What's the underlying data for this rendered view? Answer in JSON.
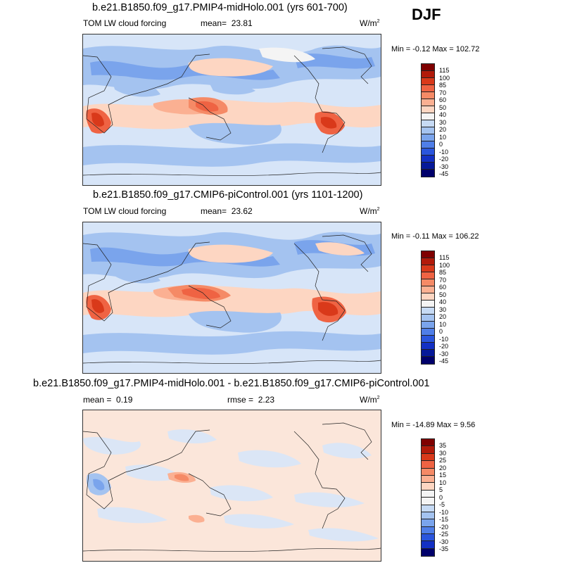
{
  "season": "DJF",
  "panels": [
    {
      "title": "b.e21.B1850.f09_g17.PMIP4-midHolo.001 (yrs 601-700)",
      "variable": "TOM LW cloud forcing",
      "mean_label": "mean=",
      "mean": "23.81",
      "units": "W/m",
      "units_sup": "2",
      "minmax": "Min =  -0.12 Max = 102.72",
      "levels": [
        "115",
        "100",
        "85",
        "70",
        "60",
        "50",
        "40",
        "30",
        "20",
        "10",
        "0",
        "-10",
        "-20",
        "-30",
        "-45"
      ]
    },
    {
      "title": "b.e21.B1850.f09_g17.CMIP6-piControl.001 (yrs 1101-1200)",
      "variable": "TOM LW cloud forcing",
      "mean_label": "mean=",
      "mean": "23.62",
      "units": "W/m",
      "units_sup": "2",
      "minmax": "Min =  -0.11 Max = 106.22",
      "levels": [
        "115",
        "100",
        "85",
        "70",
        "60",
        "50",
        "40",
        "30",
        "20",
        "10",
        "0",
        "-10",
        "-20",
        "-30",
        "-45"
      ]
    },
    {
      "title": "b.e21.B1850.f09_g17.PMIP4-midHolo.001 - b.e21.B1850.f09_g17.CMIP6-piControl.001",
      "mean_label": "mean =",
      "mean": "0.19",
      "rmse_label": "rmse =",
      "rmse": "2.23",
      "units": "W/m",
      "units_sup": "2",
      "minmax": "Min = -14.89 Max =   9.56",
      "levels": [
        "35",
        "30",
        "25",
        "20",
        "15",
        "10",
        "5",
        "0",
        "-5",
        "-10",
        "-15",
        "-20",
        "-25",
        "-30",
        "-35"
      ]
    }
  ],
  "colors": {
    "abs_scale": [
      "#7f0000",
      "#b21a0a",
      "#d9391a",
      "#ef6343",
      "#f58a66",
      "#fbb092",
      "#fdd6c2",
      "#f4f4f4",
      "#c6daf4",
      "#a4c3f0",
      "#7aa4ec",
      "#4f7ee8",
      "#2a55dd",
      "#1330c4",
      "#061999",
      "#00006b"
    ],
    "diff_scale": [
      "#7f0000",
      "#b21a0a",
      "#d9391a",
      "#ef6343",
      "#f58a66",
      "#fbb092",
      "#fdd6c2",
      "#f4f4f4",
      "#f4f4f4",
      "#c6daf4",
      "#a4c3f0",
      "#7aa4ec",
      "#4f7ee8",
      "#2a55dd",
      "#1330c4",
      "#00006b"
    ]
  }
}
